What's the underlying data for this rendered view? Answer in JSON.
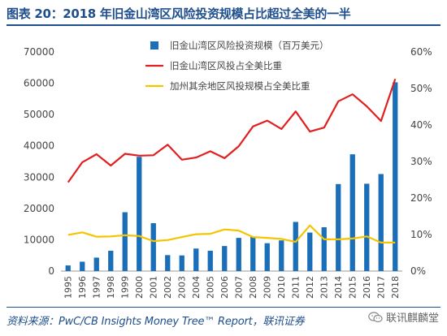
{
  "header": {
    "title": "图表 20：2018 年旧金山湾区风险投资规模占比超过全美的一半"
  },
  "footer": {
    "source": "资料来源：PwC/CB Insights Money Tree™ Report，联讯证券",
    "watermark": "联讯麒麟堂",
    "watermark_icon": "wechat-icon"
  },
  "chart_data": {
    "type": "bar",
    "categories": [
      "1995",
      "1996",
      "1997",
      "1998",
      "1999",
      "2000",
      "2001",
      "2002",
      "2003",
      "2004",
      "2005",
      "2006",
      "2007",
      "2008",
      "2009",
      "2010",
      "2011",
      "2012",
      "2013",
      "2014",
      "2015",
      "2016",
      "2017",
      "2018"
    ],
    "yticks_left": [
      "0",
      "10000",
      "20000",
      "30000",
      "40000",
      "50000",
      "60000",
      "70000"
    ],
    "yticks_right": [
      "0%",
      "10%",
      "20%",
      "30%",
      "40%",
      "50%",
      "60%"
    ],
    "ylim_left": [
      0,
      70000
    ],
    "ylim_right": [
      0,
      0.6
    ],
    "series": [
      {
        "name": "旧金山湾区风险投资规模（百万美元）",
        "type": "bar",
        "axis": "left",
        "color": "#1b6fb8",
        "values": [
          1800,
          3000,
          4300,
          6500,
          18800,
          36500,
          15300,
          5100,
          5000,
          7200,
          6500,
          8000,
          10600,
          11000,
          8900,
          9800,
          15700,
          12300,
          14000,
          27800,
          37300,
          27900,
          31000,
          60300
        ]
      },
      {
        "name": "旧金山湾区风投占全美比重",
        "type": "line",
        "axis": "right",
        "color": "#e02020",
        "values": [
          0.243,
          0.298,
          0.32,
          0.289,
          0.321,
          0.316,
          0.317,
          0.346,
          0.305,
          0.311,
          0.328,
          0.309,
          0.342,
          0.396,
          0.412,
          0.389,
          0.437,
          0.382,
          0.393,
          0.465,
          0.484,
          0.451,
          0.411,
          0.526
        ]
      },
      {
        "name": "加州其余地区风投规模占全美比重",
        "type": "line",
        "axis": "right",
        "color": "#f5c400",
        "values": [
          0.099,
          0.106,
          0.094,
          0.095,
          0.098,
          0.096,
          0.082,
          0.085,
          0.093,
          0.101,
          0.102,
          0.114,
          0.111,
          0.093,
          0.091,
          0.088,
          0.08,
          0.125,
          0.087,
          0.087,
          0.089,
          0.095,
          0.078,
          0.078
        ]
      }
    ],
    "grid": false,
    "legend_position": "top-center"
  }
}
